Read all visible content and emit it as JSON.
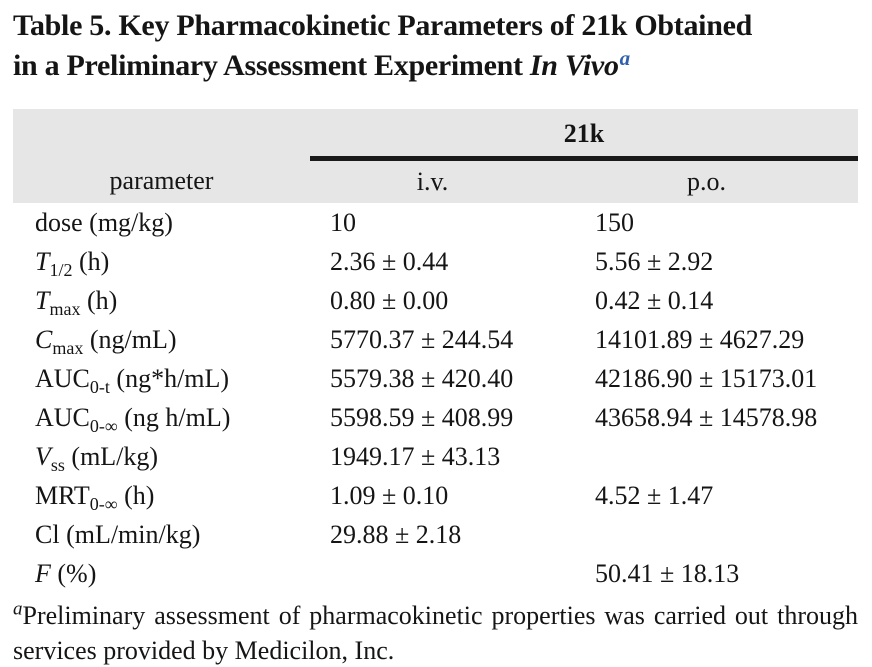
{
  "title": {
    "line1": "Table 5. Key Pharmacokinetic Parameters of 21k Obtained",
    "line2_prefix": "in a Preliminary Assessment Experiment ",
    "line2_italic": "In Vivo",
    "superscript": "a"
  },
  "colors": {
    "header_band": "#e6e6e6",
    "rule": "#1a1a1a",
    "superscript_blue": "#2f5fae",
    "text": "#151515"
  },
  "table": {
    "compound_header": "21k",
    "columns": [
      "parameter",
      "i.v.",
      "p.o."
    ],
    "rows": [
      {
        "param": [
          {
            "t": "dose (mg/kg)"
          }
        ],
        "iv": "10",
        "po": "150"
      },
      {
        "param": [
          {
            "t": "T",
            "s": "i"
          },
          {
            "t": "1/2",
            "s": "sub"
          },
          {
            "t": " (h)"
          }
        ],
        "iv": "2.36 ± 0.44",
        "po": "5.56 ± 2.92"
      },
      {
        "param": [
          {
            "t": "T",
            "s": "i"
          },
          {
            "t": "max",
            "s": "sub"
          },
          {
            "t": " (h)"
          }
        ],
        "iv": "0.80 ± 0.00",
        "po": "0.42 ± 0.14"
      },
      {
        "param": [
          {
            "t": "C",
            "s": "i"
          },
          {
            "t": "max",
            "s": "sub"
          },
          {
            "t": " (ng/mL)"
          }
        ],
        "iv": "5770.37 ± 244.54",
        "po": "14101.89 ± 4627.29"
      },
      {
        "param": [
          {
            "t": "AUC"
          },
          {
            "t": "0-t",
            "s": "sub"
          },
          {
            "t": " (ng*h/mL)"
          }
        ],
        "iv": "5579.38 ± 420.40",
        "po": "42186.90 ± 15173.01"
      },
      {
        "param": [
          {
            "t": "AUC"
          },
          {
            "t": "0-∞",
            "s": "sub"
          },
          {
            "t": " (ng h/mL)"
          }
        ],
        "iv": "5598.59 ± 408.99",
        "po": "43658.94 ± 14578.98"
      },
      {
        "param": [
          {
            "t": "V",
            "s": "i"
          },
          {
            "t": "ss",
            "s": "sub"
          },
          {
            "t": " (mL/kg)"
          }
        ],
        "iv": "1949.17 ± 43.13",
        "po": ""
      },
      {
        "param": [
          {
            "t": "MRT"
          },
          {
            "t": "0-∞",
            "s": "sub"
          },
          {
            "t": " (h)"
          }
        ],
        "iv": "1.09 ± 0.10",
        "po": "4.52 ± 1.47"
      },
      {
        "param": [
          {
            "t": "Cl (mL/min/kg)"
          }
        ],
        "iv": "29.88 ± 2.18",
        "po": ""
      },
      {
        "param": [
          {
            "t": "F",
            "s": "i"
          },
          {
            "t": " (%)"
          }
        ],
        "iv": "",
        "po": "50.41 ± 18.13"
      }
    ]
  },
  "footnote": {
    "marker": "a",
    "text": "Preliminary assessment of pharmacokinetic properties was carried out through services provided by Medicilon, Inc."
  }
}
